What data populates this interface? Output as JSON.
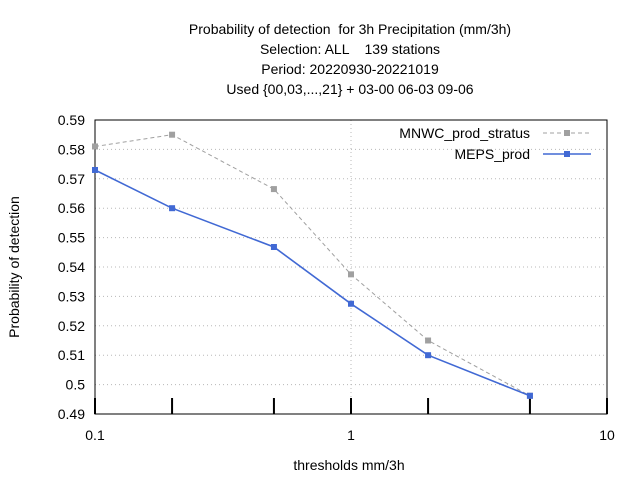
{
  "chart_data": {
    "type": "line",
    "title_lines": [
      "Probability of detection  for 3h Precipitation (mm/3h)",
      "Selection: ALL    139 stations",
      "Period: 20220930-20221019",
      "Used {00,03,...,21} + 03-00 06-03 09-06"
    ],
    "xlabel": "thresholds mm/3h",
    "ylabel": "Probability of detection",
    "x_scale": "log",
    "xlim": [
      0.1,
      10
    ],
    "ylim": [
      0.49,
      0.59
    ],
    "x_ticks": [
      0.1,
      1,
      10
    ],
    "x_tick_labels": [
      "0.1",
      "1",
      "10"
    ],
    "x_minor_ticks": [
      0.2,
      0.5,
      2,
      5
    ],
    "y_ticks": [
      0.49,
      0.5,
      0.51,
      0.52,
      0.53,
      0.54,
      0.55,
      0.56,
      0.57,
      0.58,
      0.59
    ],
    "y_tick_labels": [
      "0.49",
      "0.5",
      "0.51",
      "0.52",
      "0.53",
      "0.54",
      "0.55",
      "0.56",
      "0.57",
      "0.58",
      "0.59"
    ],
    "grid": true,
    "legend_position": "top-right",
    "series": [
      {
        "name": "MNWC_prod_stratus",
        "color": "#a0a0a0",
        "dash": true,
        "x": [
          0.1,
          0.2,
          0.5,
          1,
          2,
          5
        ],
        "y": [
          0.581,
          0.585,
          0.5665,
          0.5375,
          0.515,
          0.4962
        ]
      },
      {
        "name": "MEPS_prod",
        "color": "#4169d4",
        "dash": false,
        "x": [
          0.1,
          0.2,
          0.5,
          1,
          2,
          5
        ],
        "y": [
          0.573,
          0.56,
          0.5468,
          0.5275,
          0.51,
          0.4962
        ]
      }
    ]
  }
}
